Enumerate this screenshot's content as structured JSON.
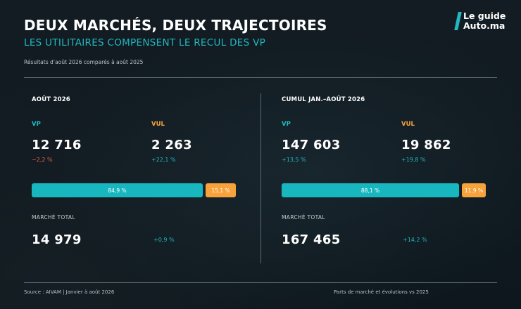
{
  "header": {
    "title": "DEUX MARCHÉS, DEUX TRAJECTOIRES",
    "subtitle": "LES UTILITAIRES COMPENSENT LE RECUL DES VP",
    "note": "Résultats d’août 2026 comparés à août 2025"
  },
  "logo": {
    "line1": "Le guide",
    "line2": "Auto.ma"
  },
  "colors": {
    "vp": "#18b7bf",
    "vul": "#f7a23b",
    "negative": "#e8634a",
    "background": "#0f1a21"
  },
  "sections": [
    {
      "title": "AOÛT 2026",
      "vp": {
        "label": "VP",
        "value": "12 716",
        "change": "−2,2 %"
      },
      "vul": {
        "label": "VUL",
        "value": "2 263",
        "change": "+22,1 %"
      },
      "share": {
        "vp": 84.9,
        "vp_label": "84,9 %",
        "vul": 15.1,
        "vul_label": "15,1 %"
      },
      "total": {
        "label": "MARCHÉ TOTAL",
        "value": "14 979",
        "change": "+0,9 %"
      }
    },
    {
      "title": "CUMUL JAN.–AOÛT 2026",
      "vp": {
        "label": "VP",
        "value": "147 603",
        "change": "+13,5 %"
      },
      "vul": {
        "label": "VUL",
        "value": "19 862",
        "change": "+19,8 %"
      },
      "share": {
        "vp": 88.1,
        "vp_label": "88,1 %",
        "vul": 11.9,
        "vul_label": "11,9 %"
      },
      "total": {
        "label": "MARCHÉ TOTAL",
        "value": "167 465",
        "change": "+14,2 %"
      }
    }
  ],
  "footer": {
    "source": "Source : AIVAM | Janvier à août 2026",
    "legend": "Parts de marché et évolutions vs 2025"
  }
}
